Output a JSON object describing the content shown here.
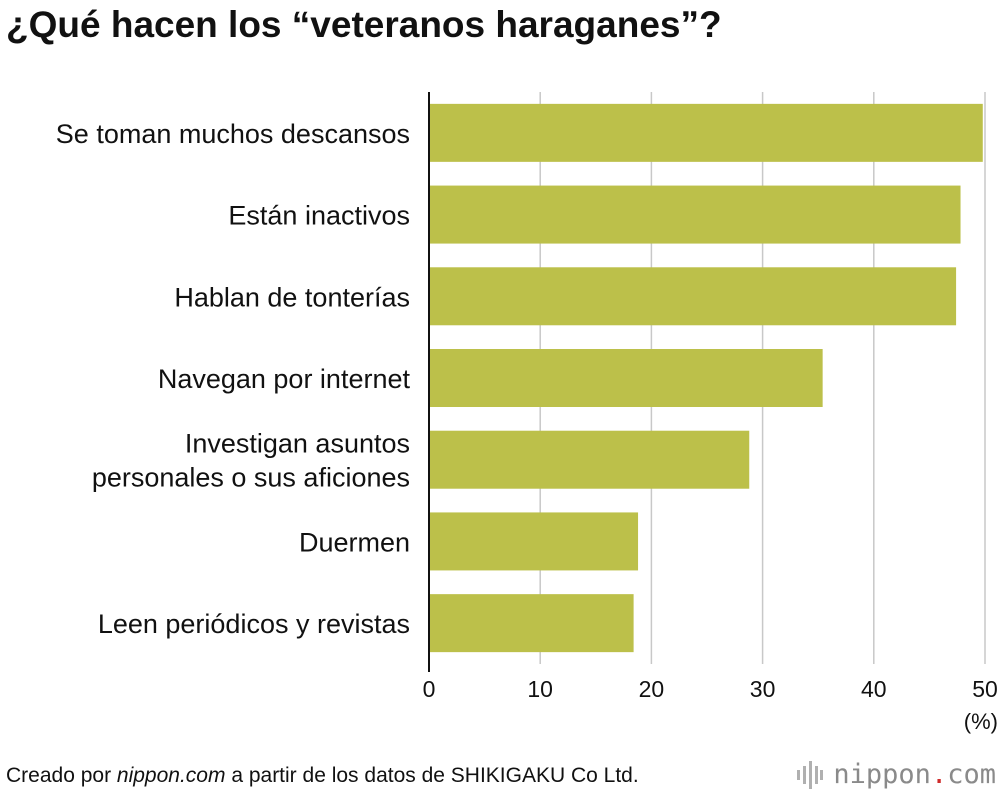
{
  "title": "¿Qué hacen los “veteranos haraganes”?",
  "chart_data": {
    "type": "bar",
    "orientation": "horizontal",
    "title": "¿Qué hacen los “veteranos haraganes”?",
    "categories": [
      [
        "Se toman muchos descansos"
      ],
      [
        "Están inactivos"
      ],
      [
        "Hablan de tonterías"
      ],
      [
        "Navegan por internet"
      ],
      [
        "Investigan asuntos",
        "personales o sus aficiones"
      ],
      [
        "Duermen"
      ],
      [
        "Leen periódicos y revistas"
      ]
    ],
    "values": [
      49.8,
      47.8,
      47.4,
      35.4,
      28.8,
      18.8,
      18.4
    ],
    "xlim": [
      0,
      50
    ],
    "xticks": [
      "0",
      "10",
      "20",
      "30",
      "40",
      "50"
    ],
    "xunit": "(%)",
    "grid": true,
    "bar_color": "#bcc04a"
  },
  "footer": {
    "prefix": "Creado por ",
    "source_site": "nippon.com",
    "suffix": " a partir de los datos de SHIKIGAKU Co Ltd."
  },
  "logo": {
    "brand": "nippon",
    "dot": ".",
    "tld": "com"
  }
}
